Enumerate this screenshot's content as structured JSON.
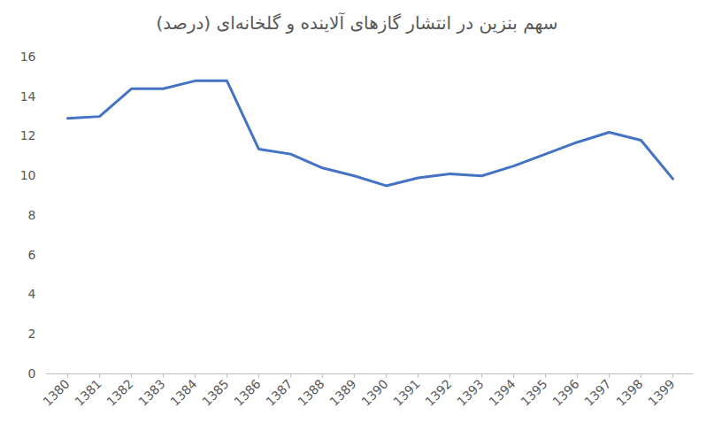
{
  "chart_data": {
    "type": "line",
    "title": "سهم بنزین در انتشار گازهای آلاینده و گلخانه‌ای (درصد)",
    "categories": [
      "1380",
      "1381",
      "1382",
      "1383",
      "1384",
      "1385",
      "1386",
      "1387",
      "1388",
      "1389",
      "1390",
      "1391",
      "1392",
      "1393",
      "1394",
      "1395",
      "1396",
      "1397",
      "1398",
      "1399"
    ],
    "values": [
      12.9,
      13.0,
      14.4,
      14.4,
      14.8,
      14.8,
      11.35,
      11.1,
      10.4,
      10.0,
      9.5,
      9.9,
      10.1,
      10.0,
      10.5,
      11.1,
      11.7,
      12.2,
      11.8,
      9.85
    ],
    "color": "#4472c4",
    "ylim": [
      0,
      16
    ],
    "yticks": [
      0,
      2,
      4,
      6,
      8,
      10,
      12,
      14,
      16
    ],
    "grid": false
  }
}
